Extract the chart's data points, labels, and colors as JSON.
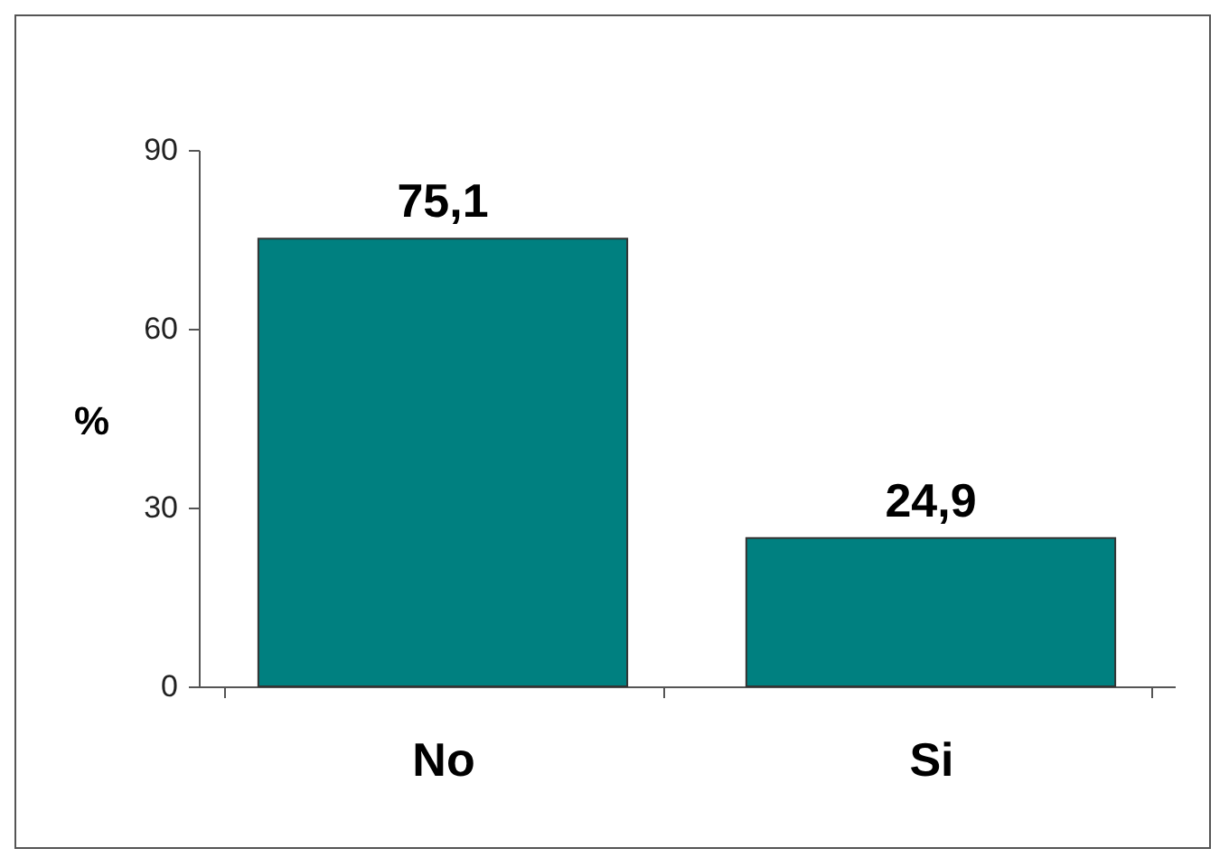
{
  "chart_data": {
    "type": "bar",
    "ylabel": "%",
    "categories": [
      "No",
      "Si"
    ],
    "values": [
      75.1,
      24.9
    ],
    "color": "#008080",
    "value_labels": [
      "75,1",
      "24,9"
    ],
    "ylim": [
      0,
      90
    ],
    "yticks": [
      0,
      30,
      60,
      90
    ],
    "grid": false
  }
}
